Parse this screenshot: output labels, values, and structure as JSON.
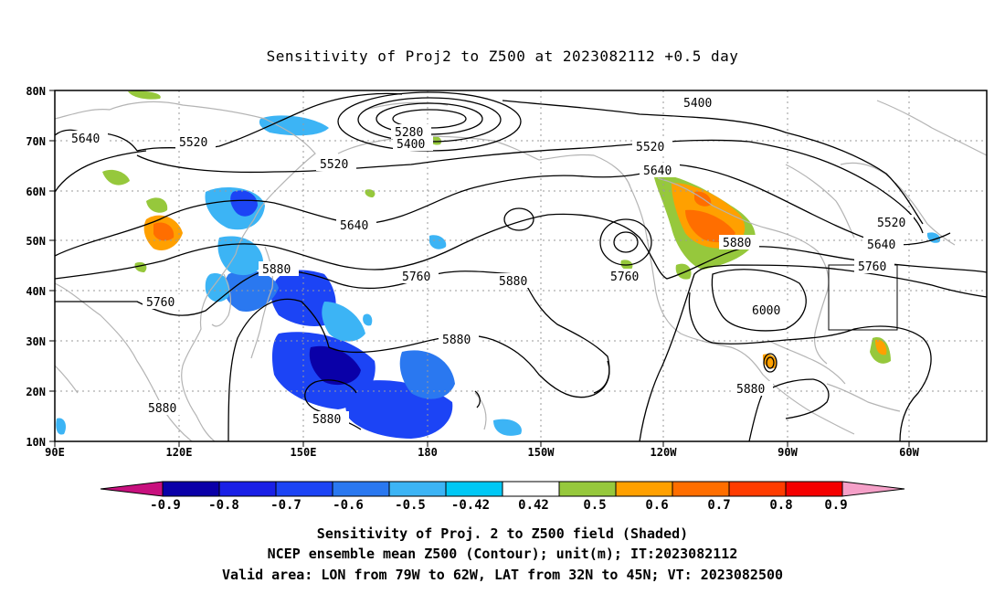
{
  "title": "Sensitivity of Proj2 to Z500 at 2023082112 +0.5 day",
  "map": {
    "lat_labels": [
      "80N",
      "70N",
      "60N",
      "50N",
      "40N",
      "30N",
      "20N",
      "10N"
    ],
    "lon_labels": [
      "90E",
      "120E",
      "150E",
      "180",
      "150W",
      "120W",
      "90W",
      "60W"
    ],
    "contour_labels": [
      {
        "text": "5640"
      },
      {
        "text": "5520"
      },
      {
        "text": "5520"
      },
      {
        "text": "5280"
      },
      {
        "text": "5400"
      },
      {
        "text": "5400"
      },
      {
        "text": "5520"
      },
      {
        "text": "5640"
      },
      {
        "text": "5520"
      },
      {
        "text": "5640"
      },
      {
        "text": "5760"
      },
      {
        "text": "5640"
      },
      {
        "text": "5880"
      },
      {
        "text": "5760"
      },
      {
        "text": "5760"
      },
      {
        "text": "5880"
      },
      {
        "text": "5760"
      },
      {
        "text": "6000"
      },
      {
        "text": "5880"
      },
      {
        "text": "5880"
      },
      {
        "text": "5880"
      },
      {
        "text": "5880"
      }
    ]
  },
  "colorbar": {
    "labels": [
      "-0.9",
      "-0.8",
      "-0.7",
      "-0.6",
      "-0.5",
      "-0.42",
      "0.42",
      "0.5",
      "0.6",
      "0.7",
      "0.8",
      "0.9"
    ],
    "colors": {
      "left_tri": "#c8107e",
      "bins": [
        "#0a00a8",
        "#1a20e6",
        "#1c44f5",
        "#2a78f0",
        "#3cb4f5",
        "#00c8f5",
        "#ffffff",
        "#96c83c",
        "#ffa000",
        "#ff6e00",
        "#ff3c00",
        "#f50000"
      ],
      "right_tri": "#f5a0c8"
    }
  },
  "footer": {
    "line1": "Sensitivity of Proj. 2 to Z500 field (Shaded)",
    "line2": "NCEP ensemble mean Z500 (Contour); unit(m); IT:2023082112",
    "line3": "Valid area: LON from 79W to 62W, LAT from 32N to 45N; VT: 2023082500"
  }
}
